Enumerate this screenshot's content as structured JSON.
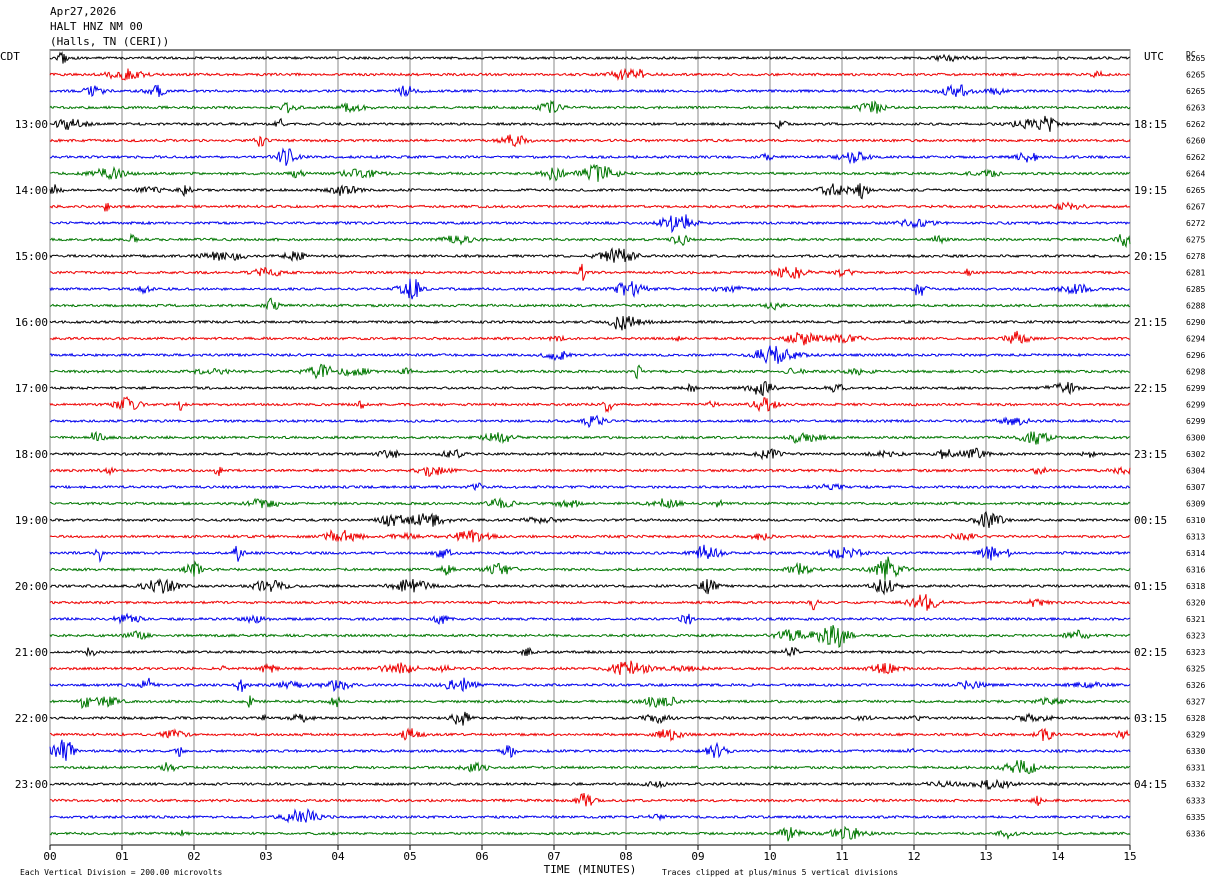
{
  "header": {
    "date": "Apr27,2026",
    "station": "HALT HNZ NM 00",
    "location": "(Halls, TN (CERI))"
  },
  "left_label": "CDT",
  "right_label": "UTC",
  "dc_label": "DC",
  "left_times": [
    "13:00",
    "14:00",
    "15:00",
    "16:00",
    "17:00",
    "18:00",
    "19:00",
    "20:00",
    "21:00",
    "22:00",
    "23:00"
  ],
  "right_times": [
    "18:15",
    "19:15",
    "20:15",
    "21:15",
    "22:15",
    "23:15",
    "00:15",
    "01:15",
    "02:15",
    "03:15",
    "04:15"
  ],
  "dc_values": [
    "6265",
    "6265",
    "6265",
    "6263",
    "6262",
    "6260",
    "6262",
    "6264",
    "6265",
    "6267",
    "6272",
    "6275",
    "6278",
    "6281",
    "6285",
    "6288",
    "6290",
    "6294",
    "6296",
    "6298",
    "6299",
    "6299",
    "6299",
    "6300",
    "6302",
    "6304",
    "6307",
    "6309",
    "6310",
    "6313",
    "6314",
    "6316",
    "6318",
    "6320",
    "6321",
    "6323",
    "6323",
    "6325",
    "6326",
    "6327",
    "6328",
    "6329",
    "6330",
    "6331",
    "6332",
    "6333",
    "6335",
    "6336"
  ],
  "x_labels": [
    "00",
    "01",
    "02",
    "03",
    "04",
    "05",
    "06",
    "07",
    "08",
    "09",
    "10",
    "11",
    "12",
    "13",
    "14",
    "15"
  ],
  "x_axis_title": "TIME (MINUTES)",
  "scale_note": "Each Vertical Division =  200.00 microvolts",
  "clip_note": "Traces clipped at plus/minus 5 vertical divisions"
}
